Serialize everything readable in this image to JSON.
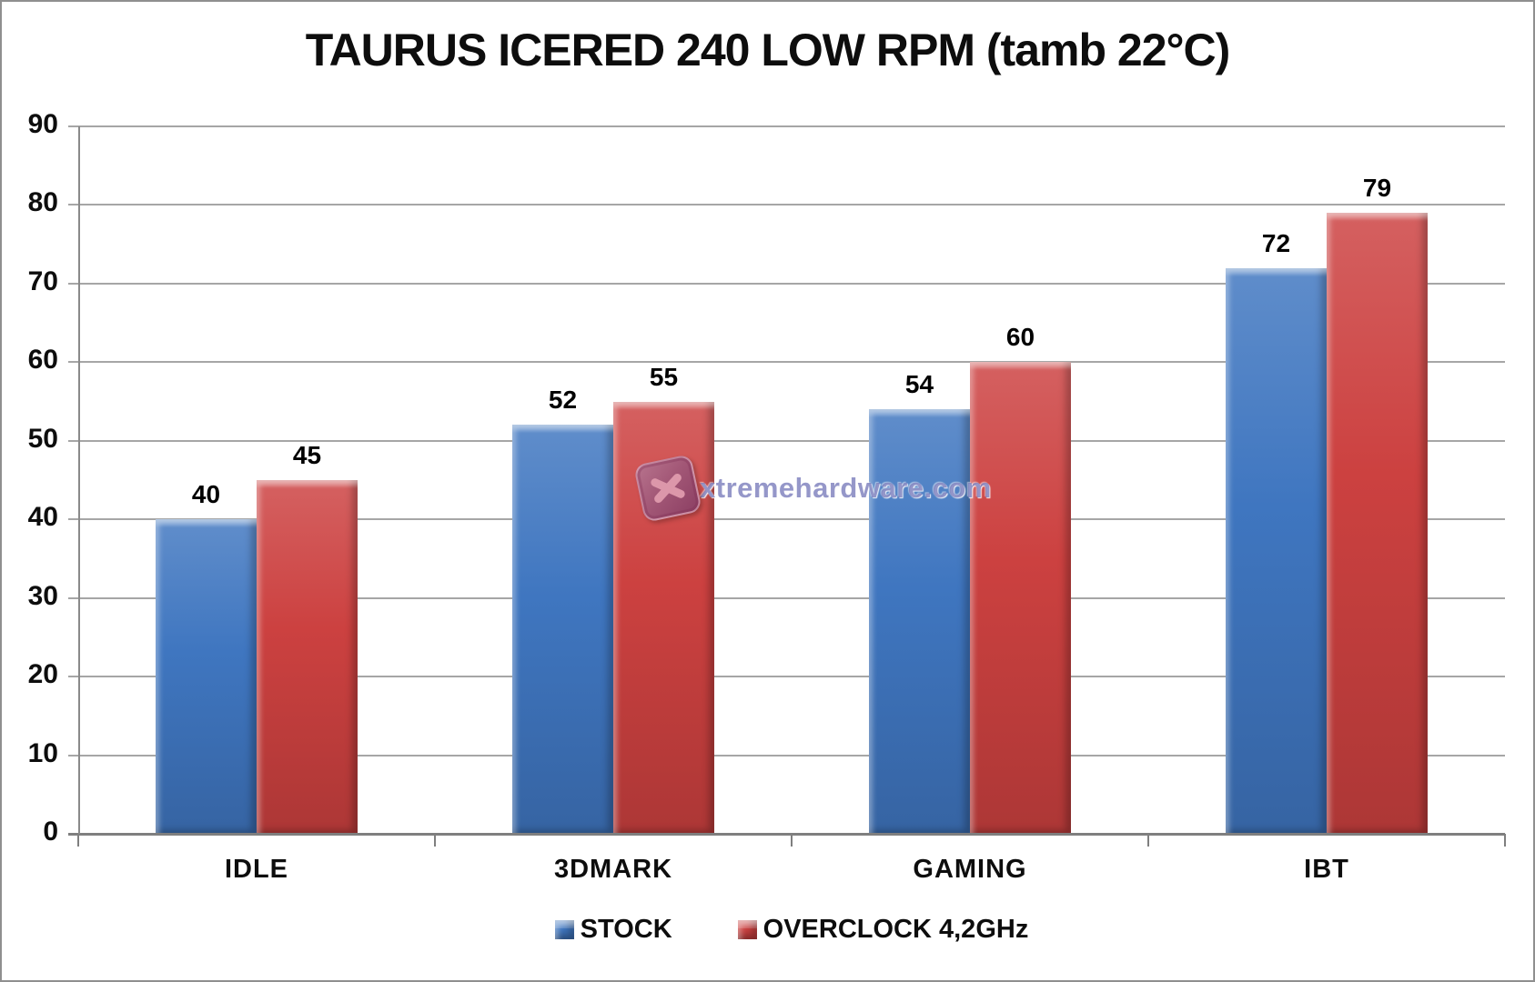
{
  "chart_data": {
    "type": "bar",
    "title": "TAURUS ICERED 240 LOW RPM (tamb 22°C)",
    "categories": [
      "IDLE",
      "3DMARK",
      "GAMING",
      "IBT"
    ],
    "series": [
      {
        "name": "STOCK",
        "color": "#3F76C0",
        "values": [
          40,
          52,
          54,
          72
        ]
      },
      {
        "name": "OVERCLOCK 4,2GHz",
        "color": "#CC4140",
        "values": [
          45,
          55,
          60,
          79
        ]
      }
    ],
    "xlabel": "",
    "ylabel": "",
    "ylim": [
      0,
      90
    ],
    "yticks": [
      0,
      10,
      20,
      30,
      40,
      50,
      60,
      70,
      80,
      90
    ],
    "grid": "horizontal",
    "legend_position": "bottom",
    "data_labels": true,
    "colors": {
      "gridline": "#A6A6A6",
      "axis": "#7F7F7F",
      "text": "#0D0D0D",
      "background": "#FFFFFF"
    }
  },
  "watermark": {
    "text": "xtremehardware.com",
    "logo": "x-icon"
  }
}
